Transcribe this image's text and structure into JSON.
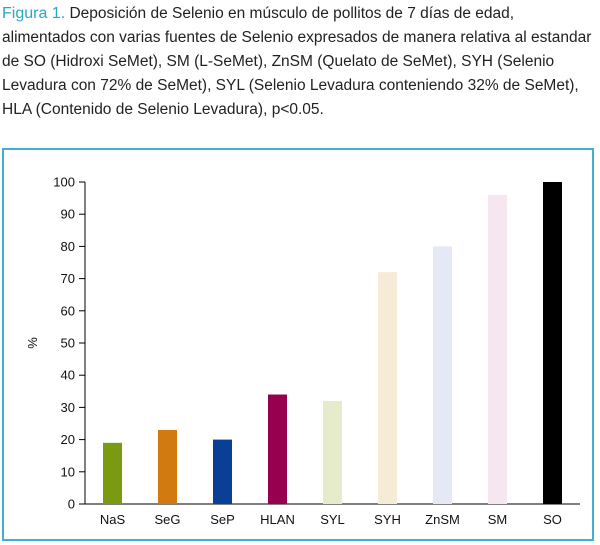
{
  "caption": {
    "label": "Figura 1.",
    "text": "Deposición de Selenio en músculo de pollitos de 7 días de edad, alimentados con varias fuentes de  Selenio expresados de manera relativa al estandar de SO (Hidroxi SeMet), SM (L-SeMet), ZnSM (Quelato de SeMet), SYH (Selenio Levadura con 72% de SeMet), SYL (Selenio Levadura conteniendo 32% de SeMet), HLA (Contenido de Selenio Levadura), p<0.05."
  },
  "colors": {
    "frame": "#3fb0cf",
    "label": "#2aa6c9"
  },
  "chart_data": {
    "type": "bar",
    "categories": [
      "NaS",
      "SeG",
      "SeP",
      "HLAN",
      "SYL",
      "SYH",
      "ZnSM",
      "SM",
      "SO"
    ],
    "values": [
      19,
      23,
      20,
      34,
      32,
      72,
      80,
      96,
      100
    ],
    "bar_colors": [
      "#7a9a12",
      "#d07a0f",
      "#0a3f96",
      "#96004f",
      "#e6ebcb",
      "#f6ebd6",
      "#e5e8f5",
      "#f6e6ef",
      "#000000"
    ],
    "ylabel": "%",
    "xlabel": "",
    "ylim": [
      0,
      100
    ],
    "yticks": [
      0,
      10,
      20,
      30,
      40,
      50,
      60,
      70,
      80,
      90,
      100
    ],
    "grid": false
  }
}
